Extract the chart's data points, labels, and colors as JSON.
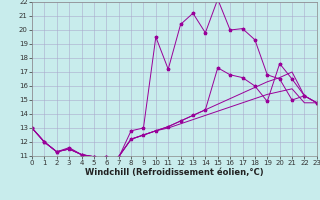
{
  "xlabel": "Windchill (Refroidissement éolien,°C)",
  "background_color": "#c8ecec",
  "line_color": "#990099",
  "grid_color": "#aaaacc",
  "xlim": [
    0,
    23
  ],
  "ylim": [
    11,
    22
  ],
  "xticks": [
    0,
    1,
    2,
    3,
    4,
    5,
    6,
    7,
    8,
    9,
    10,
    11,
    12,
    13,
    14,
    15,
    16,
    17,
    18,
    19,
    20,
    21,
    22,
    23
  ],
  "yticks": [
    11,
    12,
    13,
    14,
    15,
    16,
    17,
    18,
    19,
    20,
    21,
    22
  ],
  "line1_x": [
    0,
    1,
    2,
    3,
    4,
    5,
    6,
    7,
    8,
    9,
    10,
    11,
    12,
    13,
    14,
    15,
    16,
    17,
    18,
    19,
    20,
    21,
    22,
    23
  ],
  "line1_y": [
    13,
    12,
    11.3,
    11.6,
    11.1,
    10.9,
    10.9,
    10.9,
    12.8,
    13.0,
    19.5,
    17.2,
    20.4,
    21.2,
    19.8,
    22.2,
    20.0,
    20.1,
    19.3,
    16.8,
    16.5,
    15.0,
    15.3,
    14.8
  ],
  "line2_x": [
    0,
    1,
    2,
    3,
    4,
    5,
    6,
    7,
    8,
    9,
    10,
    11,
    12,
    13,
    14,
    15,
    16,
    17,
    18,
    19,
    20,
    21,
    22,
    23
  ],
  "line2_y": [
    13,
    12,
    11.3,
    11.5,
    11.1,
    10.95,
    10.95,
    10.95,
    12.2,
    12.5,
    12.8,
    13.0,
    13.3,
    13.6,
    13.9,
    14.2,
    14.5,
    14.8,
    15.1,
    15.4,
    15.6,
    15.8,
    14.8,
    14.8
  ],
  "line3_x": [
    0,
    1,
    2,
    3,
    4,
    5,
    6,
    7,
    8,
    9,
    10,
    11,
    12,
    13,
    14,
    15,
    16,
    17,
    18,
    19,
    20,
    21,
    22,
    23
  ],
  "line3_y": [
    13,
    12,
    11.3,
    11.5,
    11.1,
    10.95,
    10.95,
    10.95,
    12.2,
    12.5,
    12.8,
    13.1,
    13.5,
    13.9,
    14.3,
    17.3,
    16.8,
    16.6,
    16.0,
    14.9,
    17.6,
    16.5,
    15.3,
    14.8
  ],
  "line4_x": [
    0,
    1,
    2,
    3,
    4,
    5,
    6,
    7,
    8,
    9,
    10,
    11,
    12,
    13,
    14,
    15,
    16,
    17,
    18,
    19,
    20,
    21,
    22,
    23
  ],
  "line4_y": [
    13,
    12,
    11.3,
    11.5,
    11.1,
    10.95,
    10.95,
    10.95,
    12.2,
    12.5,
    12.8,
    13.1,
    13.5,
    13.9,
    14.3,
    14.7,
    15.1,
    15.5,
    15.9,
    16.3,
    16.6,
    17.0,
    15.3,
    14.8
  ],
  "tick_fontsize": 5.0,
  "xlabel_fontsize": 6.0
}
